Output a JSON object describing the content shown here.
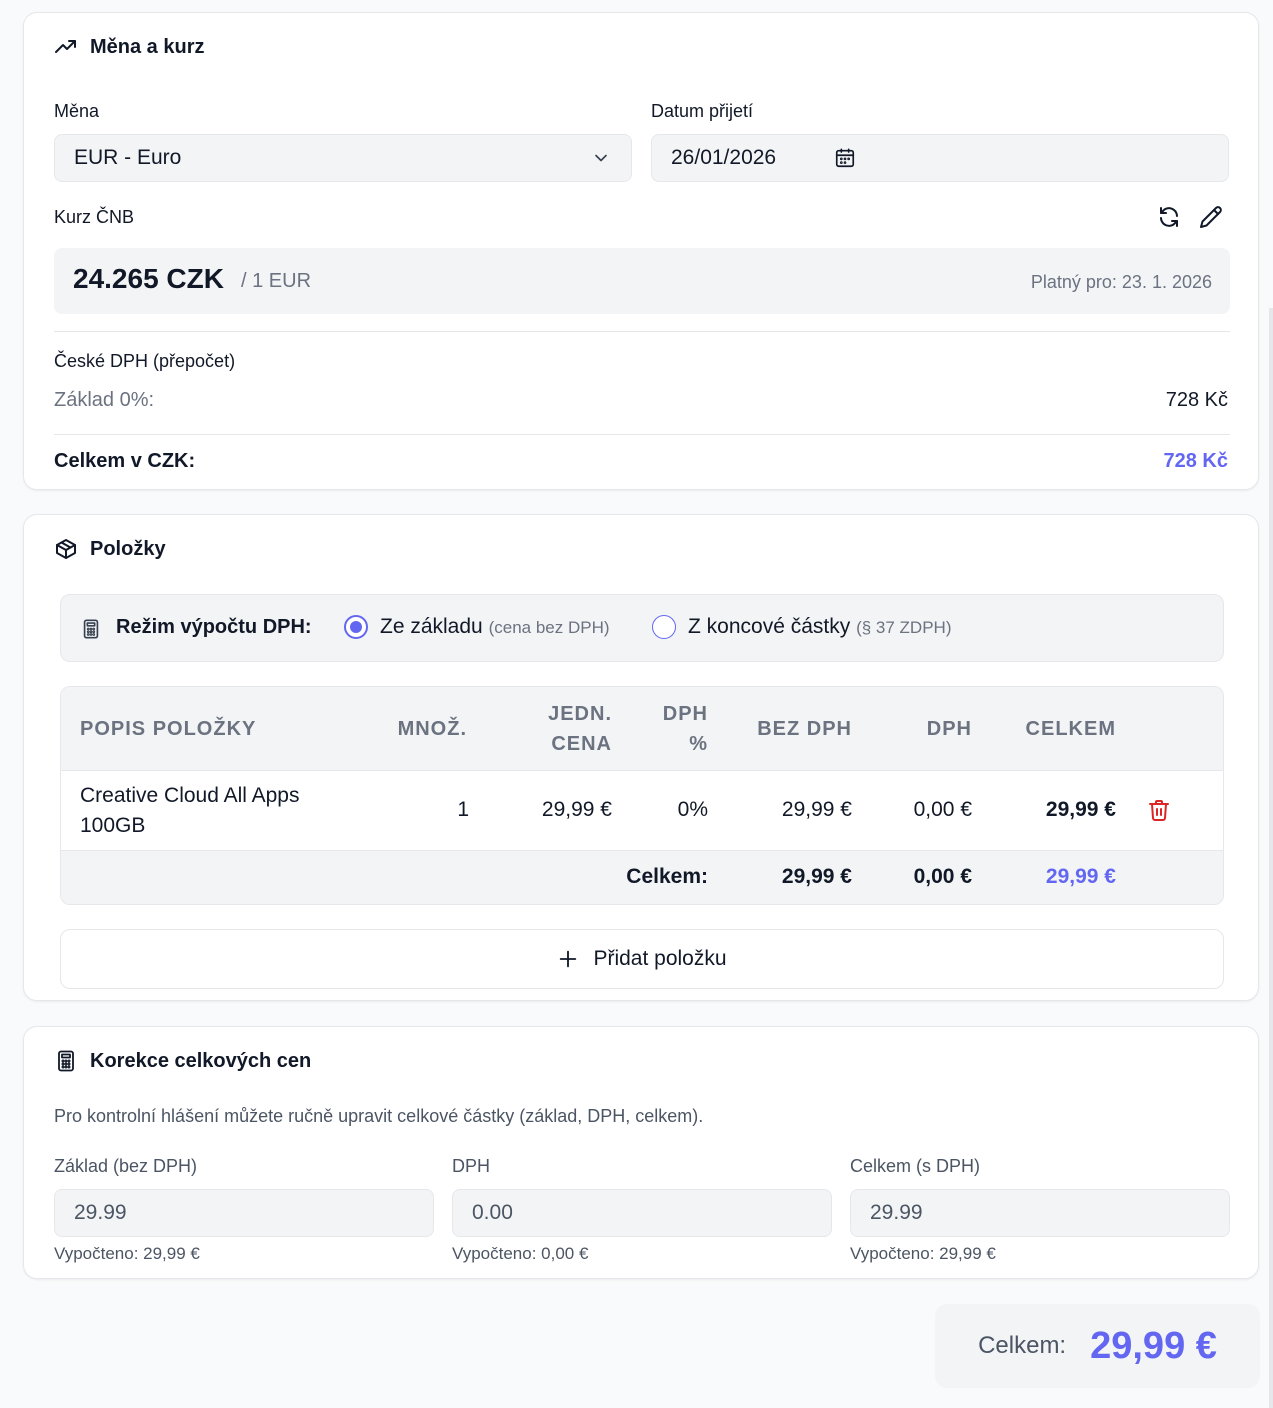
{
  "currency_section": {
    "title": "Měna a kurz",
    "currency_label": "Měna",
    "currency_value": "EUR - Euro",
    "date_label": "Datum přijetí",
    "date_value": "26/01/2026",
    "rate_label": "Kurz ČNB",
    "rate_value": "24.265 CZK",
    "rate_unit": "/ 1 EUR",
    "rate_valid": "Platný pro: 23. 1. 2026",
    "vat_heading": "České DPH (přepočet)",
    "base_label": "Základ 0%:",
    "base_value": "728 Kč",
    "total_label": "Celkem v CZK:",
    "total_value": "728 Kč"
  },
  "items_section": {
    "title": "Položky",
    "mode_label": "Režim výpočtu DPH:",
    "mode_option1": "Ze základu",
    "mode_option1_note": "(cena bez DPH)",
    "mode_option2": "Z koncové částky",
    "mode_option2_note": "(§ 37 ZDPH)",
    "selected_mode": "Ze základu",
    "columns": {
      "description": "POPIS POLOŽKY",
      "qty": "MNOŽ.",
      "unit_price_1": "JEDN.",
      "unit_price_2": "CENA",
      "vat_pct_1": "DPH",
      "vat_pct_2": "%",
      "net": "BEZ DPH",
      "vat": "DPH",
      "total": "CELKEM"
    },
    "rows": [
      {
        "description_1": "Creative Cloud All Apps",
        "description_2": "100GB",
        "qty": "1",
        "unit_price": "29,99 €",
        "vat_pct": "0%",
        "net": "29,99 €",
        "vat": "0,00 €",
        "total": "29,99 €"
      }
    ],
    "footer": {
      "label": "Celkem:",
      "net": "29,99 €",
      "vat": "0,00 €",
      "total": "29,99 €"
    },
    "add_button": "Přidat položku"
  },
  "correction_section": {
    "title": "Korekce celkových cen",
    "description": "Pro kontrolní hlášení můžete ručně upravit celkové částky (základ, DPH, celkem).",
    "fields": [
      {
        "label": "Základ (bez DPH)",
        "value": "29.99",
        "computed": "Vypočteno: 29,99 €"
      },
      {
        "label": "DPH",
        "value": "0.00",
        "computed": "Vypočteno: 0,00 €"
      },
      {
        "label": "Celkem (s DPH)",
        "value": "29.99",
        "computed": "Vypočteno: 29,99 €"
      }
    ]
  },
  "summary": {
    "label": "Celkem:",
    "value": "29,99 €"
  },
  "colors": {
    "accent": "#6366f1",
    "danger": "#dc2626",
    "muted": "#6b7280"
  }
}
